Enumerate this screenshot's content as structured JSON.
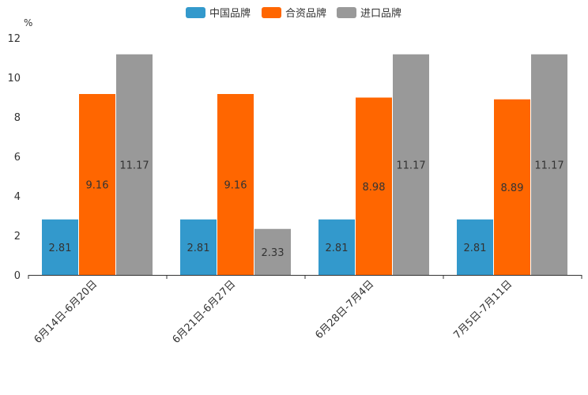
{
  "chart_data": {
    "type": "bar",
    "title": "",
    "xlabel": "",
    "ylabel": "%",
    "ylim": [
      0,
      12
    ],
    "yticks": [
      0,
      2,
      4,
      6,
      8,
      10,
      12
    ],
    "categories": [
      "6月14日-6月20日",
      "6月21日-6月27日",
      "6月28日-7月4日",
      "7月5日-7月11日"
    ],
    "series": [
      {
        "name": "中国品牌",
        "color": "#3399cc",
        "values": [
          2.81,
          2.81,
          2.81,
          2.81
        ]
      },
      {
        "name": "合资品牌",
        "color": "#ff6600",
        "values": [
          9.16,
          9.16,
          8.98,
          8.89
        ]
      },
      {
        "name": "进口品牌",
        "color": "#999999",
        "values": [
          11.17,
          2.33,
          11.17,
          11.17
        ]
      }
    ],
    "legend_position": "top-center",
    "data_labels": true,
    "grid": false
  }
}
